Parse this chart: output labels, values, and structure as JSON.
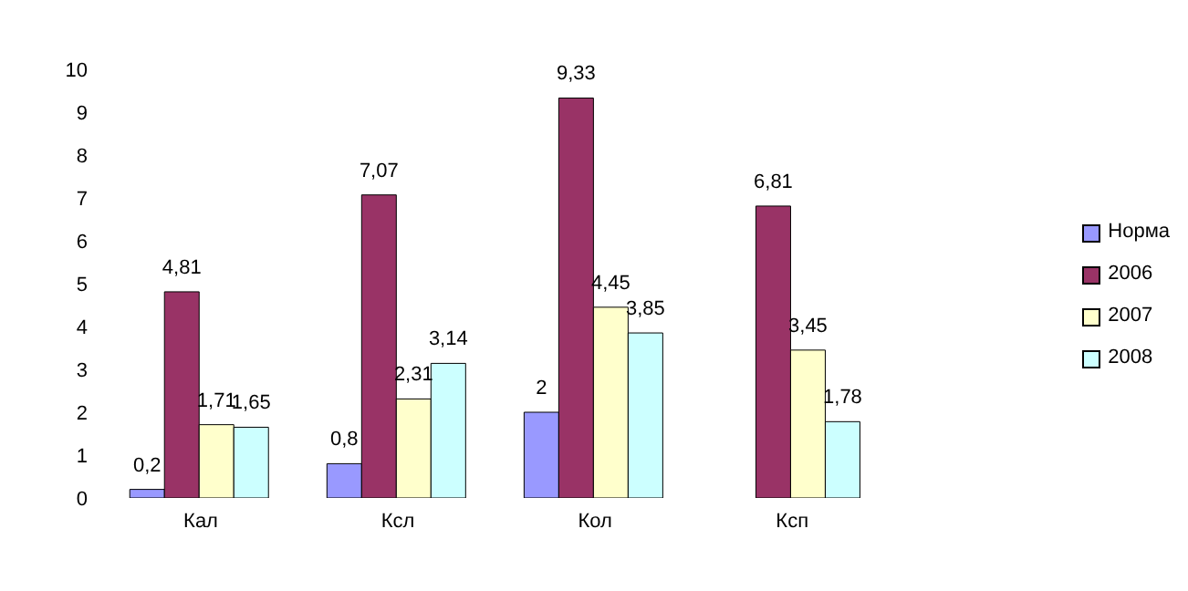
{
  "chart_data": {
    "type": "bar",
    "categories": [
      "Кал",
      "Ксл",
      "Кол",
      "Ксп"
    ],
    "series": [
      {
        "name": "Норма",
        "color": "#9999ff",
        "values": [
          0.2,
          0.8,
          2,
          null
        ],
        "value_labels": [
          "0,2",
          "0,8",
          "2",
          null
        ]
      },
      {
        "name": "2006",
        "color": "#993366",
        "values": [
          4.81,
          7.07,
          9.33,
          6.81
        ],
        "value_labels": [
          "4,81",
          "7,07",
          "9,33",
          "6,81"
        ]
      },
      {
        "name": "2007",
        "color": "#ffffcc",
        "values": [
          1.71,
          2.31,
          4.45,
          3.45
        ],
        "value_labels": [
          "1,71",
          "2,31",
          "4,45",
          "3,45"
        ]
      },
      {
        "name": "2008",
        "color": "#ccffff",
        "values": [
          1.65,
          3.14,
          3.85,
          1.78
        ],
        "value_labels": [
          "1,65",
          "3,14",
          "3,85",
          "1,78"
        ]
      }
    ],
    "ylim": [
      0,
      10
    ],
    "yticks": [
      0,
      1,
      2,
      3,
      4,
      5,
      6,
      7,
      8,
      9,
      10
    ],
    "grid": false,
    "legend": "right"
  }
}
